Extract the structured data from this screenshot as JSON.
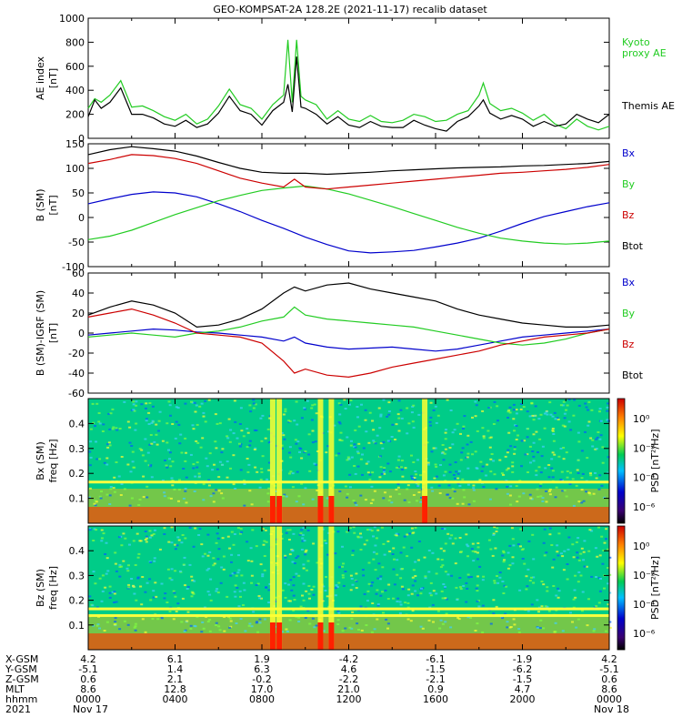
{
  "title": "GEO-KOMPSAT-2A 128.2E (2021-11-17) recalib dataset",
  "colors": {
    "black": "#000000",
    "green": "#22cc22",
    "blue": "#0000cc",
    "red": "#cc0000"
  },
  "chart_data": [
    {
      "type": "line",
      "ylabel": [
        "AE index",
        "[nT]"
      ],
      "ylim": [
        0,
        1000
      ],
      "yticks": [
        0,
        200,
        400,
        600,
        800,
        1000
      ],
      "series": [
        {
          "name": "Kyoto proxy AE",
          "color": "#22cc22",
          "x": [
            0,
            0.3,
            0.6,
            1,
            1.5,
            2,
            2.5,
            3,
            3.5,
            4,
            4.5,
            5,
            5.5,
            6,
            6.5,
            7,
            7.5,
            8,
            8.5,
            9,
            9.2,
            9.4,
            9.6,
            9.8,
            10,
            10.5,
            11,
            11.5,
            12,
            12.5,
            13,
            13.5,
            14,
            14.5,
            15,
            15.5,
            16,
            16.5,
            17,
            17.5,
            18,
            18.2,
            18.5,
            19,
            19.5,
            20,
            20.5,
            21,
            21.5,
            22,
            22.5,
            23,
            23.5,
            24
          ],
          "values": [
            250,
            330,
            300,
            360,
            480,
            260,
            270,
            230,
            180,
            150,
            200,
            120,
            160,
            270,
            410,
            280,
            250,
            160,
            280,
            360,
            820,
            300,
            820,
            350,
            320,
            280,
            160,
            230,
            160,
            140,
            190,
            140,
            130,
            150,
            200,
            180,
            140,
            150,
            200,
            230,
            360,
            460,
            290,
            230,
            250,
            210,
            150,
            200,
            120,
            80,
            160,
            100,
            70,
            100
          ]
        },
        {
          "name": "Themis AE",
          "color": "#000000",
          "x": [
            0,
            0.3,
            0.6,
            1,
            1.5,
            2,
            2.5,
            3,
            3.5,
            4,
            4.5,
            5,
            5.5,
            6,
            6.5,
            7,
            7.5,
            8,
            8.5,
            9,
            9.2,
            9.4,
            9.6,
            9.8,
            10,
            10.5,
            11,
            11.5,
            12,
            12.5,
            13,
            13.5,
            14,
            14.5,
            15,
            15.5,
            16,
            16.5,
            17,
            17.5,
            18,
            18.2,
            18.5,
            19,
            19.5,
            20,
            20.5,
            21,
            21.5,
            22,
            22.5,
            23,
            23.5,
            24
          ],
          "values": [
            180,
            320,
            250,
            300,
            420,
            200,
            200,
            170,
            120,
            100,
            150,
            90,
            120,
            210,
            350,
            230,
            200,
            110,
            230,
            300,
            450,
            220,
            680,
            260,
            250,
            200,
            120,
            180,
            110,
            90,
            140,
            100,
            90,
            90,
            150,
            110,
            80,
            60,
            140,
            180,
            270,
            320,
            210,
            160,
            190,
            160,
            100,
            140,
            100,
            120,
            200,
            160,
            130,
            200
          ]
        }
      ]
    },
    {
      "type": "line",
      "ylabel": [
        "B (SM)",
        "[nT]"
      ],
      "ylim": [
        -100,
        150
      ],
      "yticks": [
        -100,
        -50,
        0,
        50,
        100,
        150
      ],
      "series": [
        {
          "name": "Bx",
          "color": "#0000cc",
          "x": [
            0,
            1,
            2,
            3,
            4,
            5,
            6,
            7,
            8,
            9,
            10,
            11,
            12,
            13,
            14,
            15,
            16,
            17,
            18,
            19,
            20,
            21,
            22,
            23,
            24
          ],
          "values": [
            28,
            38,
            47,
            52,
            50,
            42,
            28,
            12,
            -6,
            -22,
            -40,
            -55,
            -68,
            -72,
            -70,
            -67,
            -60,
            -52,
            -42,
            -28,
            -12,
            2,
            12,
            22,
            30
          ]
        },
        {
          "name": "By",
          "color": "#22cc22",
          "x": [
            0,
            1,
            2,
            3,
            4,
            5,
            6,
            7,
            8,
            9,
            10,
            11,
            12,
            13,
            14,
            15,
            16,
            17,
            18,
            19,
            20,
            21,
            22,
            23,
            24
          ],
          "values": [
            -45,
            -38,
            -26,
            -10,
            6,
            20,
            34,
            45,
            55,
            60,
            64,
            58,
            48,
            35,
            22,
            8,
            -6,
            -20,
            -32,
            -42,
            -48,
            -52,
            -54,
            -52,
            -48
          ]
        },
        {
          "name": "Bz",
          "color": "#cc0000",
          "x": [
            0,
            1,
            2,
            3,
            4,
            5,
            6,
            7,
            8,
            9,
            9.5,
            10,
            11,
            12,
            13,
            14,
            15,
            16,
            17,
            18,
            19,
            20,
            21,
            22,
            23,
            24
          ],
          "values": [
            110,
            118,
            128,
            126,
            120,
            110,
            95,
            80,
            70,
            62,
            78,
            62,
            58,
            62,
            66,
            70,
            74,
            78,
            82,
            86,
            90,
            92,
            95,
            98,
            102,
            108
          ]
        },
        {
          "name": "Btot",
          "color": "#000000",
          "x": [
            0,
            1,
            2,
            3,
            4,
            5,
            6,
            7,
            8,
            9,
            10,
            11,
            12,
            13,
            14,
            15,
            16,
            17,
            18,
            19,
            20,
            21,
            22,
            23,
            24
          ],
          "values": [
            128,
            138,
            144,
            140,
            135,
            125,
            112,
            100,
            92,
            90,
            90,
            88,
            90,
            92,
            95,
            97,
            99,
            101,
            102,
            103,
            105,
            106,
            108,
            110,
            114
          ]
        }
      ]
    },
    {
      "type": "line",
      "ylabel": [
        "B (SM)-IGRF (SM)",
        "[nT]"
      ],
      "ylim": [
        -60,
        60
      ],
      "yticks": [
        -60,
        -40,
        -20,
        0,
        20,
        40,
        60
      ],
      "series": [
        {
          "name": "Bx",
          "color": "#0000cc",
          "x": [
            0,
            1,
            2,
            3,
            4,
            5,
            6,
            7,
            8,
            9,
            9.5,
            10,
            11,
            12,
            13,
            14,
            15,
            16,
            17,
            18,
            19,
            20,
            21,
            22,
            23,
            24
          ],
          "values": [
            -2,
            0,
            2,
            4,
            3,
            1,
            0,
            -2,
            -4,
            -8,
            -4,
            -10,
            -14,
            -16,
            -15,
            -14,
            -16,
            -18,
            -16,
            -12,
            -8,
            -4,
            -2,
            0,
            2,
            4
          ]
        },
        {
          "name": "By",
          "color": "#22cc22",
          "x": [
            0,
            1,
            2,
            3,
            4,
            5,
            6,
            7,
            8,
            9,
            9.5,
            10,
            11,
            12,
            13,
            14,
            15,
            16,
            17,
            18,
            19,
            20,
            21,
            22,
            23,
            24
          ],
          "values": [
            -4,
            -2,
            0,
            -2,
            -4,
            0,
            2,
            6,
            12,
            16,
            26,
            18,
            14,
            12,
            10,
            8,
            6,
            2,
            -2,
            -6,
            -10,
            -12,
            -10,
            -6,
            0,
            4
          ]
        },
        {
          "name": "Bz",
          "color": "#cc0000",
          "x": [
            0,
            1,
            2,
            3,
            4,
            5,
            6,
            7,
            8,
            9,
            9.5,
            10,
            11,
            12,
            13,
            14,
            15,
            16,
            17,
            18,
            19,
            20,
            21,
            22,
            23,
            24
          ],
          "values": [
            16,
            20,
            24,
            18,
            10,
            0,
            -2,
            -4,
            -10,
            -28,
            -40,
            -36,
            -42,
            -44,
            -40,
            -34,
            -30,
            -26,
            -22,
            -18,
            -12,
            -8,
            -4,
            -2,
            0,
            4
          ]
        },
        {
          "name": "Btot",
          "color": "#000000",
          "x": [
            0,
            1,
            2,
            3,
            4,
            5,
            6,
            7,
            8,
            9,
            9.5,
            10,
            11,
            12,
            13,
            14,
            15,
            16,
            17,
            18,
            19,
            20,
            21,
            22,
            23,
            24
          ],
          "values": [
            18,
            26,
            32,
            28,
            20,
            6,
            8,
            14,
            24,
            40,
            46,
            42,
            48,
            50,
            44,
            40,
            36,
            32,
            24,
            18,
            14,
            10,
            8,
            6,
            6,
            8
          ]
        }
      ]
    },
    {
      "type": "heatmap",
      "ylabel": [
        "Bx (SM)",
        "freq [Hz]"
      ],
      "ylim": [
        0,
        0.5
      ],
      "yticks": [
        0.1,
        0.2,
        0.3,
        0.4
      ],
      "colorbar": {
        "label": "PSD [nT²/Hz]",
        "ticks": [
          "10⁰",
          "10⁻²",
          "10⁻⁴",
          "10⁻⁶"
        ]
      },
      "bands_hz": [
        0.167
      ],
      "bursts_hr": [
        8.5,
        8.8,
        10.7,
        11.2,
        15.5
      ]
    },
    {
      "type": "heatmap",
      "ylabel": [
        "Bz (SM)",
        "freq [Hz]"
      ],
      "ylim": [
        0,
        0.5
      ],
      "yticks": [
        0.1,
        0.2,
        0.3,
        0.4
      ],
      "colorbar": {
        "label": "PSD [nT²/Hz]",
        "ticks": [
          "10⁰",
          "10⁻²",
          "10⁻⁴",
          "10⁻⁶"
        ]
      },
      "bands_hz": [
        0.167,
        0.14
      ],
      "bursts_hr": [
        8.5,
        8.8,
        10.7,
        11.2
      ]
    }
  ],
  "panel_labels": [
    [
      {
        "text": "Kyoto",
        "color": "#22cc22"
      },
      {
        "text": "proxy AE",
        "color": "#22cc22"
      },
      {
        "text": "Themis AE",
        "color": "#000000"
      }
    ],
    [
      {
        "text": "Bx",
        "color": "#0000cc"
      },
      {
        "text": "By",
        "color": "#22cc22"
      },
      {
        "text": "Bz",
        "color": "#cc0000"
      },
      {
        "text": "Btot",
        "color": "#000000"
      }
    ],
    [
      {
        "text": "Bx",
        "color": "#0000cc"
      },
      {
        "text": "By",
        "color": "#22cc22"
      },
      {
        "text": "Bz",
        "color": "#cc0000"
      },
      {
        "text": "Btot",
        "color": "#000000"
      }
    ]
  ],
  "ephemeris": {
    "labels": [
      "X-GSM",
      "Y-GSM",
      "Z-GSM",
      "MLT",
      "hhmm",
      "2021"
    ],
    "columns": [
      [
        "4.2",
        "-5.1",
        "0.6",
        "8.6",
        "0000",
        "Nov 17"
      ],
      [
        "6.1",
        "1.4",
        "2.1",
        "12.8",
        "0400",
        ""
      ],
      [
        "1.9",
        "6.3",
        "-0.2",
        "17.0",
        "0800",
        ""
      ],
      [
        "-4.2",
        "4.6",
        "-2.2",
        "21.0",
        "1200",
        ""
      ],
      [
        "-6.1",
        "-1.5",
        "-2.1",
        "0.9",
        "1600",
        ""
      ],
      [
        "-1.9",
        "-6.2",
        "-1.5",
        "4.7",
        "2000",
        ""
      ],
      [
        "4.2",
        "-5.1",
        "0.6",
        "8.6",
        "0000",
        "Nov 18"
      ]
    ]
  }
}
